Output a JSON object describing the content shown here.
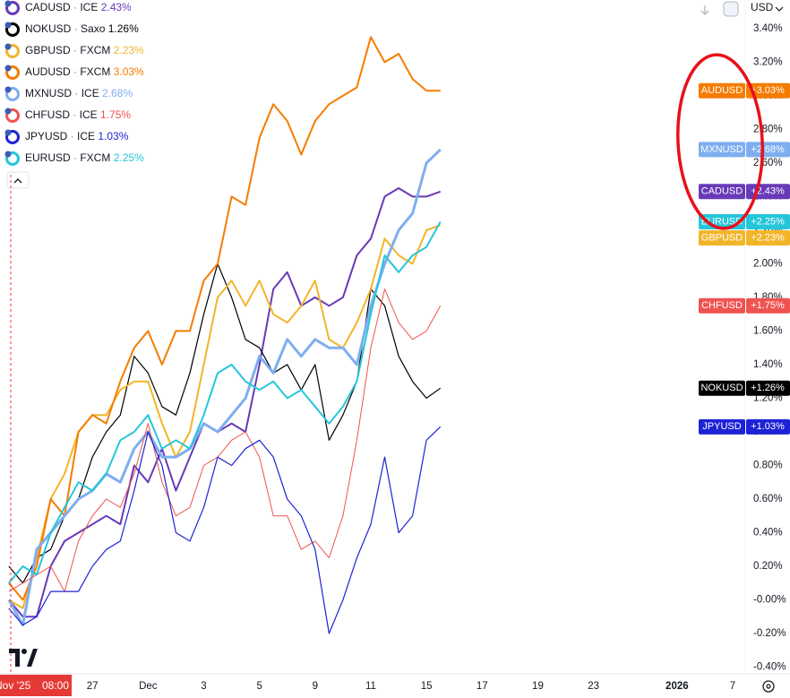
{
  "chart_data": {
    "type": "line",
    "currency": "USD",
    "crosshair_date": "Nov '25",
    "crosshair_time": "08:00",
    "grid": false,
    "x": [
      0,
      0.5,
      1,
      1.5,
      2,
      2.5,
      3,
      3.5,
      4,
      4.5,
      5,
      5.5,
      6,
      6.5,
      7,
      7.5,
      8,
      8.5,
      9,
      9.5,
      10,
      10.5,
      11,
      11.5,
      12,
      12.5,
      13,
      13.5,
      14,
      14.5,
      15,
      15.5
    ],
    "xlim": [
      -0.32,
      26.45
    ],
    "xticks": [
      {
        "value": 3,
        "label": "27"
      },
      {
        "value": 5,
        "label": "Dec"
      },
      {
        "value": 7,
        "label": "3"
      },
      {
        "value": 9,
        "label": "5"
      },
      {
        "value": 11,
        "label": "9"
      },
      {
        "value": 13,
        "label": "11"
      },
      {
        "value": 15,
        "label": "15"
      },
      {
        "value": 17,
        "label": "17"
      },
      {
        "value": 19,
        "label": "19"
      },
      {
        "value": 21,
        "label": "23"
      },
      {
        "value": 24,
        "label": "2026"
      },
      {
        "value": 26,
        "label": "7"
      }
    ],
    "ylim": [
      -0.44,
      3.57
    ],
    "yticks": [
      {
        "value": 3.4,
        "label": "3.40%"
      },
      {
        "value": 3.2,
        "label": "3.20%"
      },
      {
        "value": 3.0,
        "label": "3.00%"
      },
      {
        "value": 2.8,
        "label": "2.80%"
      },
      {
        "value": 2.6,
        "label": "2.60%"
      },
      {
        "value": 2.4,
        "label": "2.40%"
      },
      {
        "value": 2.2,
        "label": "2.20%"
      },
      {
        "value": 2.0,
        "label": "2.00%"
      },
      {
        "value": 1.8,
        "label": "1.80%"
      },
      {
        "value": 1.6,
        "label": "1.60%"
      },
      {
        "value": 1.4,
        "label": "1.40%"
      },
      {
        "value": 1.2,
        "label": "1.20%"
      },
      {
        "value": 1.0,
        "label": "1.00%"
      },
      {
        "value": 0.8,
        "label": "0.80%"
      },
      {
        "value": 0.6,
        "label": "0.60%"
      },
      {
        "value": 0.4,
        "label": "0.40%"
      },
      {
        "value": 0.2,
        "label": "0.20%"
      },
      {
        "value": 0.0,
        "label": "-0.00%"
      },
      {
        "value": -0.2,
        "label": "-0.20%"
      },
      {
        "value": -0.4,
        "label": "-0.40%"
      }
    ],
    "series": [
      {
        "name": "CADUSD",
        "source": "ICE",
        "legend_label": "2.43%",
        "tag_label": "+2.43%",
        "color": "#673ab7",
        "width": 2,
        "values": [
          0.0,
          -0.1,
          -0.1,
          0.2,
          0.35,
          0.4,
          0.45,
          0.5,
          0.45,
          0.8,
          0.7,
          0.9,
          0.65,
          0.85,
          1.05,
          1.0,
          1.05,
          1.0,
          1.4,
          1.85,
          1.95,
          1.75,
          1.8,
          1.75,
          1.8,
          2.05,
          2.15,
          2.4,
          2.45,
          2.4,
          2.4,
          2.43
        ]
      },
      {
        "name": "NOKUSD",
        "source": "Saxo",
        "legend_label": "1.26%",
        "tag_label": "+1.26%",
        "color": "#000000",
        "width": 1.2,
        "values": [
          0.2,
          0.1,
          0.25,
          0.3,
          0.5,
          0.6,
          0.85,
          1.0,
          1.1,
          1.45,
          1.35,
          1.15,
          1.1,
          1.35,
          1.7,
          2.0,
          1.8,
          1.55,
          1.5,
          1.35,
          1.4,
          1.25,
          1.4,
          0.95,
          1.1,
          1.3,
          1.85,
          1.75,
          1.45,
          1.3,
          1.2,
          1.26
        ]
      },
      {
        "name": "GBPUSD",
        "source": "FXCM",
        "legend_label": "2.23%",
        "tag_label": "+2.23%",
        "color": "#f2b52a",
        "width": 2,
        "values": [
          0.0,
          -0.05,
          0.25,
          0.6,
          0.75,
          1.0,
          1.1,
          1.1,
          1.25,
          1.3,
          1.3,
          1.05,
          0.85,
          1.0,
          1.4,
          1.8,
          1.9,
          1.75,
          1.9,
          1.7,
          1.65,
          1.75,
          1.9,
          1.55,
          1.5,
          1.65,
          1.85,
          2.15,
          2.05,
          2.0,
          2.2,
          2.23
        ]
      },
      {
        "name": "AUDUSD",
        "source": "FXCM",
        "legend_label": "3.03%",
        "tag_label": "+3.03%",
        "color": "#f57c00",
        "width": 2,
        "values": [
          0.1,
          0.0,
          0.2,
          0.6,
          0.5,
          1.0,
          1.1,
          1.05,
          1.3,
          1.5,
          1.6,
          1.4,
          1.6,
          1.6,
          1.9,
          2.0,
          2.4,
          2.35,
          2.75,
          2.95,
          2.85,
          2.65,
          2.85,
          2.95,
          3.0,
          3.05,
          3.35,
          3.2,
          3.25,
          3.1,
          3.03,
          3.03
        ]
      },
      {
        "name": "MXNUSD",
        "source": "ICE",
        "legend_label": "2.68%",
        "tag_label": "+2.68%",
        "color": "#7eaef0",
        "width": 3,
        "values": [
          0.0,
          -0.15,
          0.3,
          0.4,
          0.5,
          0.6,
          0.65,
          0.75,
          0.7,
          0.9,
          1.0,
          0.85,
          0.85,
          0.9,
          1.05,
          1.0,
          1.1,
          1.2,
          1.45,
          1.35,
          1.55,
          1.45,
          1.55,
          1.5,
          1.5,
          1.4,
          1.75,
          2.0,
          2.2,
          2.3,
          2.6,
          2.68
        ]
      },
      {
        "name": "CHFUSD",
        "source": "ICE",
        "legend_label": "1.75%",
        "tag_label": "+1.75%",
        "color": "#ef5350",
        "width": 1,
        "values": [
          0.05,
          0.1,
          0.15,
          0.2,
          0.05,
          0.35,
          0.5,
          0.6,
          0.55,
          0.75,
          1.05,
          0.7,
          0.5,
          0.55,
          0.8,
          0.85,
          0.95,
          1.0,
          0.85,
          0.5,
          0.5,
          0.3,
          0.35,
          0.25,
          0.5,
          0.95,
          1.5,
          1.85,
          1.65,
          1.55,
          1.6,
          1.75
        ]
      },
      {
        "name": "JPYUSD",
        "source": "ICE",
        "legend_label": "1.03%",
        "tag_label": "+1.03%",
        "color": "#1e22d6",
        "width": 1.2,
        "values": [
          -0.05,
          -0.15,
          -0.1,
          0.05,
          0.05,
          0.05,
          0.2,
          0.3,
          0.35,
          0.65,
          1.0,
          0.8,
          0.4,
          0.35,
          0.55,
          0.85,
          0.8,
          0.9,
          0.95,
          0.85,
          0.6,
          0.5,
          0.3,
          -0.2,
          0.0,
          0.25,
          0.45,
          0.85,
          0.4,
          0.5,
          0.95,
          1.03
        ]
      },
      {
        "name": "EURUSD",
        "source": "FXCM",
        "legend_label": "2.25%",
        "tag_label": "+2.25%",
        "color": "#26c6da",
        "width": 2,
        "values": [
          0.1,
          0.2,
          0.15,
          0.4,
          0.55,
          0.7,
          0.65,
          0.75,
          0.95,
          1.0,
          1.1,
          0.9,
          0.95,
          0.9,
          1.1,
          1.35,
          1.4,
          1.3,
          1.25,
          1.3,
          1.2,
          1.25,
          1.15,
          1.05,
          1.15,
          1.3,
          1.7,
          2.05,
          1.95,
          2.05,
          2.1,
          2.25
        ]
      }
    ]
  }
}
